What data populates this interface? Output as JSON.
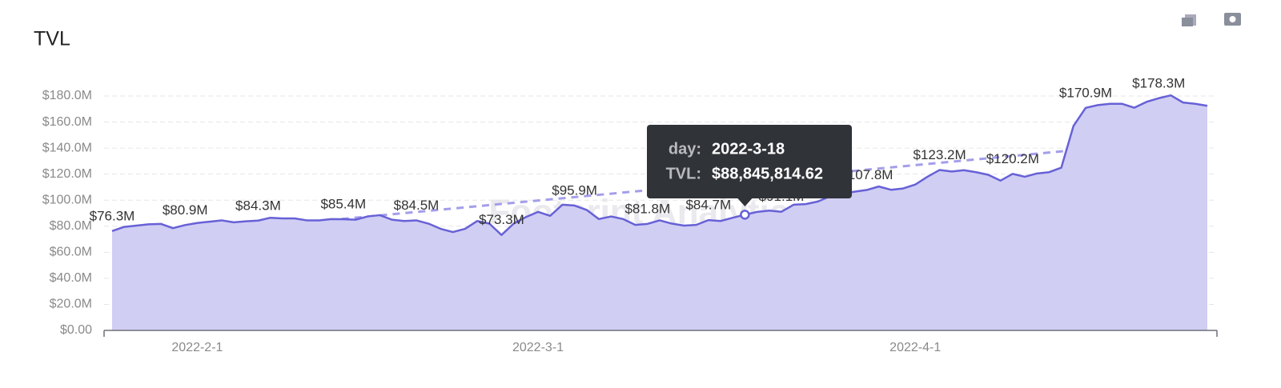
{
  "chart_data": {
    "type": "area",
    "title": "TVL",
    "watermark": "Footprint Analytics",
    "categories": [
      null,
      null,
      null,
      null,
      null,
      null,
      null,
      "2022-2-1",
      null,
      null,
      null,
      null,
      null,
      null,
      null,
      null,
      null,
      null,
      null,
      null,
      null,
      null,
      null,
      null,
      null,
      null,
      null,
      null,
      null,
      null,
      null,
      null,
      null,
      null,
      null,
      "2022-3-1",
      null,
      null,
      null,
      null,
      null,
      null,
      null,
      null,
      null,
      null,
      null,
      null,
      null,
      null,
      null,
      null,
      null,
      null,
      null,
      null,
      null,
      null,
      null,
      null,
      null,
      null,
      null,
      null,
      null,
      null,
      "2022-4-1",
      null,
      null,
      null,
      null,
      null,
      null,
      null,
      null,
      null,
      null,
      null,
      null,
      null,
      null,
      null,
      null,
      null,
      null,
      null,
      null,
      null,
      null,
      null,
      null
    ],
    "series": [
      {
        "name": "TVL",
        "color": "#6761d6",
        "fill": "#d1cef4",
        "values": [
          76.3,
          79.5,
          80.5,
          81.5,
          81.8,
          78.5,
          80.9,
          82.5,
          83.5,
          84.5,
          83,
          83.8,
          84.3,
          86.5,
          86,
          86,
          84.5,
          84.5,
          85.5,
          85.4,
          85,
          87.5,
          88.5,
          85,
          84,
          84.5,
          82,
          78,
          75.5,
          78,
          84,
          82,
          73.3,
          82,
          87,
          91,
          88,
          96.5,
          95.9,
          92.5,
          85.5,
          87.5,
          85.5,
          81,
          81.8,
          84.5,
          82,
          80.5,
          81,
          84.7,
          84,
          86.5,
          88.85,
          91,
          92,
          91.1,
          96.5,
          97,
          99,
          103,
          105,
          106.5,
          107.8,
          110.5,
          108,
          109,
          112,
          118,
          123.2,
          122,
          123,
          121.5,
          119.5,
          115,
          120.2,
          118,
          120.5,
          121.5,
          125,
          157,
          170.9,
          173,
          174,
          174,
          171,
          175.5,
          178.3,
          180.5,
          175,
          174,
          172.5
        ],
        "value_labels": [
          "$76.3M",
          null,
          null,
          null,
          null,
          null,
          "$80.9M",
          null,
          null,
          null,
          null,
          null,
          "$84.3M",
          null,
          null,
          null,
          null,
          null,
          null,
          "$85.4M",
          null,
          null,
          null,
          null,
          null,
          "$84.5M",
          null,
          null,
          null,
          null,
          null,
          null,
          "$73.3M",
          null,
          null,
          null,
          null,
          null,
          "$95.9M",
          null,
          null,
          null,
          null,
          null,
          "$81.8M",
          null,
          null,
          null,
          null,
          "$84.7M",
          null,
          null,
          null,
          null,
          null,
          "$91.1M",
          null,
          null,
          null,
          null,
          null,
          null,
          "$107.8M",
          null,
          null,
          null,
          null,
          null,
          "$123.2M",
          null,
          null,
          null,
          null,
          null,
          "$120.2M",
          null,
          null,
          null,
          null,
          null,
          "$170.9M",
          null,
          null,
          null,
          null,
          null,
          "$178.3M",
          null,
          null,
          null,
          null
        ]
      }
    ],
    "trend": {
      "color": "#a39eea",
      "values": [
        69,
        148
      ]
    },
    "ylim": [
      0,
      180
    ],
    "yticks": [
      {
        "value": 0,
        "label": "$0.00"
      },
      {
        "value": 20,
        "label": "$20.0M"
      },
      {
        "value": 40,
        "label": "$40.0M"
      },
      {
        "value": 60,
        "label": "$60.0M"
      },
      {
        "value": 80,
        "label": "$80.0M"
      },
      {
        "value": 100,
        "label": "$100.0M"
      },
      {
        "value": 120,
        "label": "$120.0M"
      },
      {
        "value": 140,
        "label": "$140.0M"
      },
      {
        "value": 160,
        "label": "$160.0M"
      },
      {
        "value": 180,
        "label": "$180.0M"
      }
    ],
    "grid": true,
    "tooltip": {
      "index": 52,
      "day_key": "day:",
      "day": "2022-3-18",
      "value_key": "TVL:",
      "value": "$88,845,814.62"
    }
  }
}
